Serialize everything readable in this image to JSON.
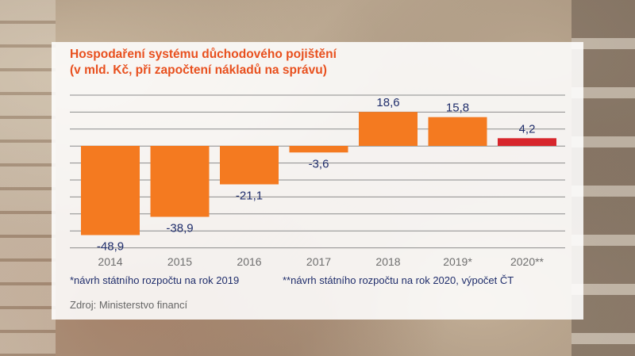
{
  "title": {
    "line1": "Hospodaření systému důchodového pojištění",
    "line2": "(v mld. Kč, při započtení nákladů na správu)"
  },
  "notes": {
    "note1": "*návrh státního rozpočtu na rok 2019",
    "note2": "**návrh státního rozpočtu na rok 2020, výpočet ČT"
  },
  "source": "Zdroj: Ministerstvo financí",
  "colors": {
    "title": "#e8501e",
    "bar": "#f47a20",
    "bar_highlight": "#d7262c",
    "labels": "#1f2d6b",
    "categories": "#6e6e6e"
  },
  "chart_data": {
    "type": "bar",
    "categories": [
      "2014",
      "2015",
      "2016",
      "2017",
      "2018",
      "2019*",
      "2020**"
    ],
    "values": [
      -48.9,
      -38.9,
      -21.1,
      -3.6,
      18.6,
      15.8,
      4.2
    ],
    "data_labels": [
      "-48,9",
      "-38,9",
      "-21,1",
      "-3,6",
      "18,6",
      "15,8",
      "4,2"
    ],
    "title": "Hospodaření systému důchodového pojištění",
    "subtitle": "(v mld. Kč, při započtení nákladů na správu)",
    "xlabel": "",
    "ylabel": "",
    "ylim": [
      -60,
      30
    ],
    "grid": true,
    "legend": "none"
  }
}
